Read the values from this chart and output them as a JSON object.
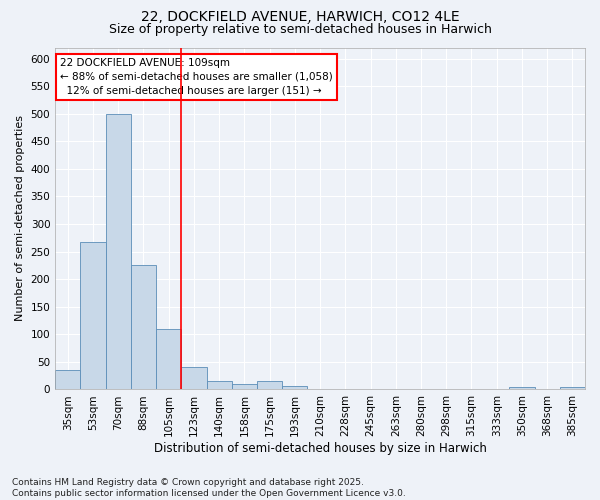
{
  "title1": "22, DOCKFIELD AVENUE, HARWICH, CO12 4LE",
  "title2": "Size of property relative to semi-detached houses in Harwich",
  "xlabel": "Distribution of semi-detached houses by size in Harwich",
  "ylabel": "Number of semi-detached properties",
  "footnote": "Contains HM Land Registry data © Crown copyright and database right 2025.\nContains public sector information licensed under the Open Government Licence v3.0.",
  "categories": [
    "35sqm",
    "53sqm",
    "70sqm",
    "88sqm",
    "105sqm",
    "123sqm",
    "140sqm",
    "158sqm",
    "175sqm",
    "193sqm",
    "210sqm",
    "228sqm",
    "245sqm",
    "263sqm",
    "280sqm",
    "298sqm",
    "315sqm",
    "333sqm",
    "350sqm",
    "368sqm",
    "385sqm"
  ],
  "values": [
    35,
    268,
    500,
    225,
    110,
    40,
    15,
    10,
    15,
    6,
    0,
    0,
    0,
    0,
    0,
    0,
    0,
    0,
    4,
    0,
    5
  ],
  "bar_color": "#c8d8e8",
  "bar_edge_color": "#5b8db8",
  "vline_x": 4.5,
  "vline_color": "red",
  "annotation_text": "22 DOCKFIELD AVENUE: 109sqm\n← 88% of semi-detached houses are smaller (1,058)\n  12% of semi-detached houses are larger (151) →",
  "ylim": [
    0,
    620
  ],
  "yticks": [
    0,
    50,
    100,
    150,
    200,
    250,
    300,
    350,
    400,
    450,
    500,
    550,
    600
  ],
  "background_color": "#eef2f8",
  "grid_color": "#ffffff",
  "title1_fontsize": 10,
  "title2_fontsize": 9,
  "xlabel_fontsize": 8.5,
  "ylabel_fontsize": 8,
  "tick_fontsize": 7.5,
  "annotation_fontsize": 7.5,
  "footnote_fontsize": 6.5
}
